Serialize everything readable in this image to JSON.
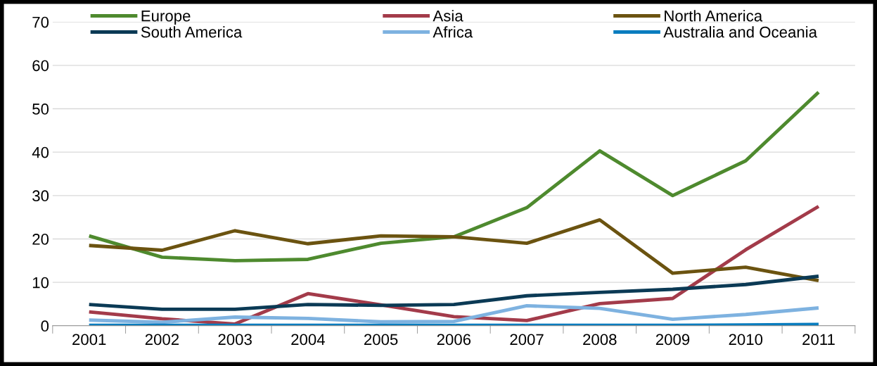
{
  "chart_data": {
    "type": "line",
    "categories": [
      "2001",
      "2002",
      "2003",
      "2004",
      "2005",
      "2006",
      "2007",
      "2008",
      "2009",
      "2010",
      "2011"
    ],
    "series": [
      {
        "name": "Europe",
        "color": "#4e8a2e",
        "values": [
          20.7,
          15.8,
          15.0,
          15.3,
          19.0,
          20.5,
          27.2,
          40.3,
          30.0,
          38.0,
          53.8
        ]
      },
      {
        "name": "Asia",
        "color": "#a33b4a",
        "values": [
          3.2,
          1.6,
          0.4,
          7.4,
          4.8,
          2.1,
          1.2,
          5.1,
          6.3,
          17.5,
          27.5
        ]
      },
      {
        "name": "North America",
        "color": "#6b5310",
        "values": [
          18.5,
          17.4,
          21.9,
          18.9,
          20.7,
          20.5,
          19.0,
          24.4,
          12.1,
          13.5,
          10.4
        ]
      },
      {
        "name": "South America",
        "color": "#0b3a55",
        "values": [
          4.9,
          3.8,
          3.8,
          4.9,
          4.7,
          4.9,
          6.9,
          7.7,
          8.4,
          9.5,
          11.4
        ]
      },
      {
        "name": "Africa",
        "color": "#7eb2e0",
        "values": [
          1.3,
          0.8,
          2.0,
          1.7,
          0.9,
          1.0,
          4.6,
          4.0,
          1.5,
          2.6,
          4.1
        ]
      },
      {
        "name": "Australia and Oceania",
        "color": "#0a7dbf",
        "values": [
          0.1,
          0.1,
          0.1,
          0.1,
          0.1,
          0.1,
          0.1,
          0.1,
          0.1,
          0.2,
          0.3
        ]
      }
    ],
    "ylim": [
      0,
      70
    ],
    "yticks": [
      0,
      10,
      20,
      30,
      40,
      50,
      60,
      70
    ],
    "grid": "y",
    "legend": "top",
    "marker": "none",
    "line_style": "solid"
  }
}
